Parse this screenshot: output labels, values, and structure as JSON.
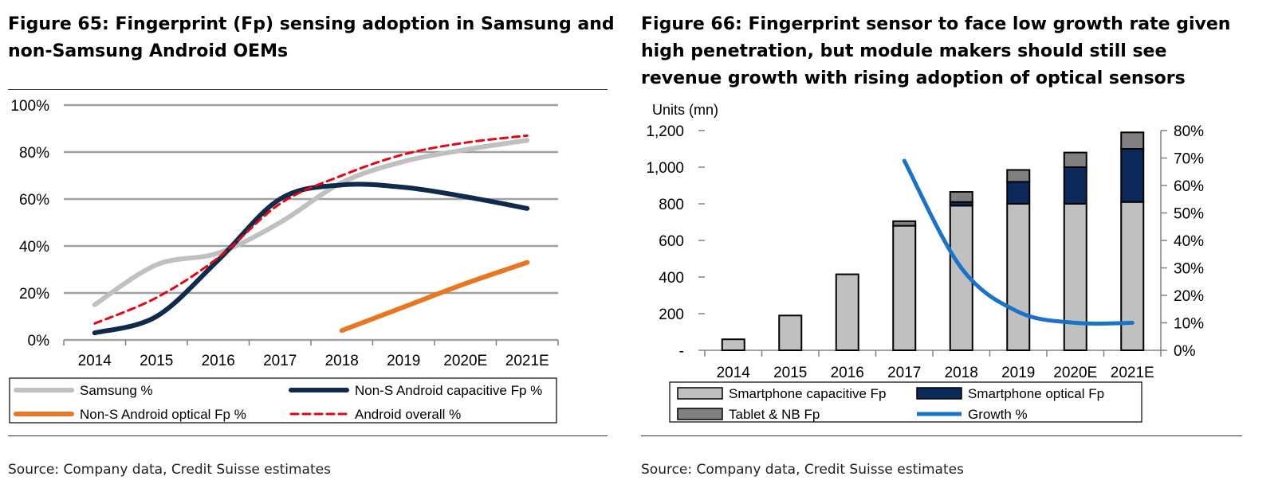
{
  "left": {
    "title": "Figure 65: Fingerprint (Fp) sensing adoption in Samsung and non-Samsung Android OEMs",
    "source": "Source: Company data, Credit Suisse estimates"
  },
  "right": {
    "title": "Figure 66: Fingerprint sensor to face low growth rate given high penetration, but module makers should still see revenue growth with rising adoption of optical sensors",
    "source": "Source: Company data, Credit Suisse estimates"
  },
  "chart_data": [
    {
      "type": "line",
      "title": "Figure 65: Fingerprint (Fp) sensing adoption in Samsung and non-Samsung Android OEMs",
      "categories": [
        "2014",
        "2015",
        "2016",
        "2017",
        "2018",
        "2019",
        "2020E",
        "2021E"
      ],
      "y_ticks": [
        "100%",
        "80%",
        "60%",
        "40%",
        "20%",
        "0%"
      ],
      "ylim": [
        0,
        100
      ],
      "grid": true,
      "legend_position": "bottom",
      "series": [
        {
          "name": "Samsung %",
          "color": "#c0c0c0",
          "style": "solid",
          "values": [
            15,
            32,
            37,
            50,
            67,
            76,
            81,
            85
          ]
        },
        {
          "name": "Non-S Android capacitive Fp %",
          "color": "#102a4c",
          "style": "solid",
          "values": [
            3,
            10,
            34,
            60,
            66,
            65,
            61,
            56
          ]
        },
        {
          "name": "Non-S Android optical Fp %",
          "color": "#e87722",
          "style": "solid",
          "values": [
            null,
            null,
            null,
            null,
            4,
            14,
            24,
            33
          ]
        },
        {
          "name": "Android overall %",
          "color": "#e30613",
          "style": "dashed",
          "values": [
            7,
            18,
            35,
            58,
            70,
            79,
            84,
            87
          ]
        }
      ]
    },
    {
      "type": "bar",
      "stacked": true,
      "title": "Figure 66: Fingerprint sensor to face low growth rate given high penetration, but module makers should still see revenue growth with rising adoption of optical sensors",
      "ylabel": "Units (mn)",
      "categories": [
        "2014",
        "2015",
        "2016",
        "2017",
        "2018",
        "2019",
        "2020E",
        "2021E"
      ],
      "y_ticks": [
        "1,200",
        "1,000",
        "800",
        "600",
        "400",
        "200",
        "-"
      ],
      "ylim": [
        0,
        1200
      ],
      "y2_ticks": [
        "80%",
        "70%",
        "60%",
        "50%",
        "40%",
        "30%",
        "20%",
        "10%",
        "0%"
      ],
      "y2lim": [
        0,
        80
      ],
      "legend_position": "bottom",
      "series": [
        {
          "name": "Smartphone capacitive Fp",
          "color": "#c0c0c0",
          "values": [
            60,
            190,
            415,
            680,
            790,
            800,
            800,
            810
          ]
        },
        {
          "name": "Smartphone optical Fp",
          "color": "#0b2a5b",
          "values": [
            0,
            0,
            0,
            0,
            20,
            120,
            200,
            290
          ]
        },
        {
          "name": "Tablet & NB Fp",
          "color": "#808080",
          "values": [
            0,
            0,
            0,
            25,
            55,
            65,
            80,
            90
          ]
        },
        {
          "name": "Growth %",
          "color": "#1a73c6",
          "axis": "right",
          "type": "line",
          "values": [
            null,
            null,
            null,
            69,
            30,
            14,
            10,
            10
          ]
        }
      ]
    }
  ]
}
